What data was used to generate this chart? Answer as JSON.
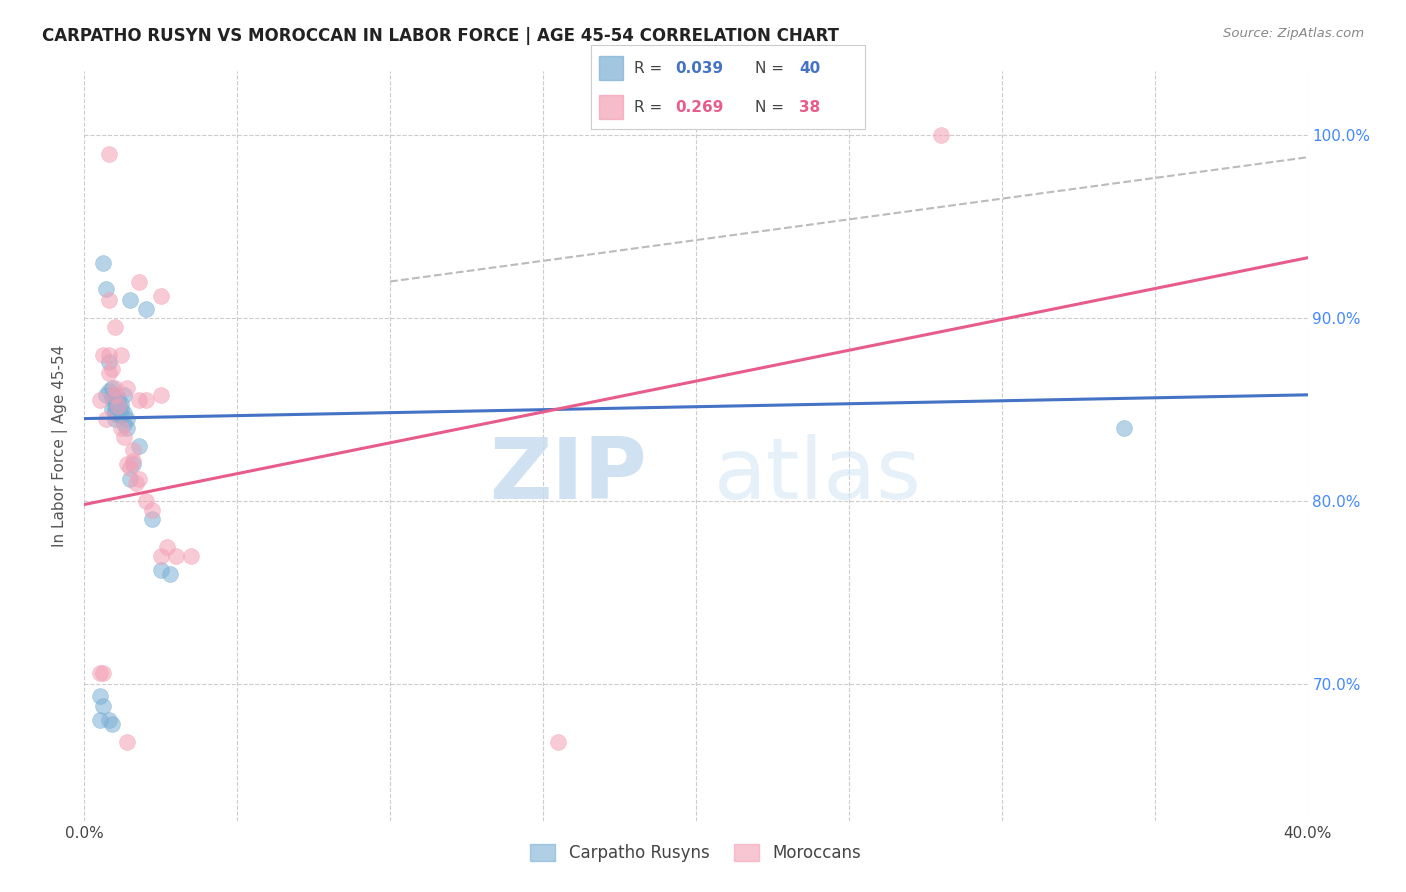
{
  "title": "CARPATHO RUSYN VS MOROCCAN IN LABOR FORCE | AGE 45-54 CORRELATION CHART",
  "source": "Source: ZipAtlas.com",
  "ylabel": "In Labor Force | Age 45-54",
  "xlim": [
    0.0,
    0.4
  ],
  "ylim": [
    0.625,
    1.035
  ],
  "xticks": [
    0.0,
    0.05,
    0.1,
    0.15,
    0.2,
    0.25,
    0.3,
    0.35,
    0.4
  ],
  "yticks": [
    0.7,
    0.8,
    0.9,
    1.0
  ],
  "blue_color": "#7BAFD4",
  "pink_color": "#F4A0B5",
  "blue_line_color": "#4472C4",
  "pink_line_color": "#E85C8A",
  "dashed_line_color": "#BBBBBB",
  "blue_scatter_x": [
    0.006,
    0.007,
    0.007,
    0.008,
    0.008,
    0.009,
    0.009,
    0.009,
    0.01,
    0.01,
    0.01,
    0.01,
    0.01,
    0.01,
    0.011,
    0.011,
    0.011,
    0.011,
    0.012,
    0.012,
    0.012,
    0.013,
    0.013,
    0.014,
    0.014,
    0.015,
    0.016,
    0.018,
    0.02,
    0.022,
    0.005,
    0.005,
    0.006,
    0.008,
    0.009,
    0.013,
    0.015,
    0.025,
    0.028,
    0.34
  ],
  "blue_scatter_y": [
    0.93,
    0.916,
    0.858,
    0.876,
    0.86,
    0.862,
    0.856,
    0.85,
    0.858,
    0.856,
    0.853,
    0.85,
    0.848,
    0.845,
    0.856,
    0.852,
    0.85,
    0.847,
    0.853,
    0.85,
    0.847,
    0.848,
    0.842,
    0.845,
    0.84,
    0.812,
    0.82,
    0.83,
    0.905,
    0.79,
    0.693,
    0.68,
    0.688,
    0.68,
    0.678,
    0.858,
    0.91,
    0.762,
    0.76,
    0.84
  ],
  "pink_scatter_x": [
    0.005,
    0.006,
    0.007,
    0.008,
    0.008,
    0.009,
    0.01,
    0.01,
    0.011,
    0.012,
    0.013,
    0.014,
    0.015,
    0.016,
    0.016,
    0.017,
    0.018,
    0.02,
    0.022,
    0.025,
    0.027,
    0.03,
    0.008,
    0.01,
    0.012,
    0.014,
    0.018,
    0.02,
    0.025,
    0.035,
    0.28,
    0.006,
    0.155,
    0.018,
    0.025,
    0.005,
    0.008,
    0.014
  ],
  "pink_scatter_y": [
    0.706,
    0.88,
    0.845,
    0.88,
    0.87,
    0.872,
    0.862,
    0.858,
    0.852,
    0.84,
    0.835,
    0.82,
    0.818,
    0.822,
    0.828,
    0.81,
    0.812,
    0.8,
    0.795,
    0.77,
    0.775,
    0.77,
    0.91,
    0.895,
    0.88,
    0.862,
    0.855,
    0.855,
    0.858,
    0.77,
    1.0,
    0.706,
    0.668,
    0.92,
    0.912,
    0.855,
    0.99,
    0.668
  ],
  "blue_trend_x": [
    0.0,
    0.4
  ],
  "blue_trend_y": [
    0.845,
    0.858
  ],
  "pink_trend_x": [
    0.0,
    0.4
  ],
  "pink_trend_y": [
    0.798,
    0.933
  ],
  "dashed_trend_x": [
    0.1,
    0.4
  ],
  "dashed_trend_y": [
    0.92,
    0.988
  ],
  "legend_blue_r": "0.039",
  "legend_blue_n": "40",
  "legend_pink_r": "0.269",
  "legend_pink_n": "38"
}
